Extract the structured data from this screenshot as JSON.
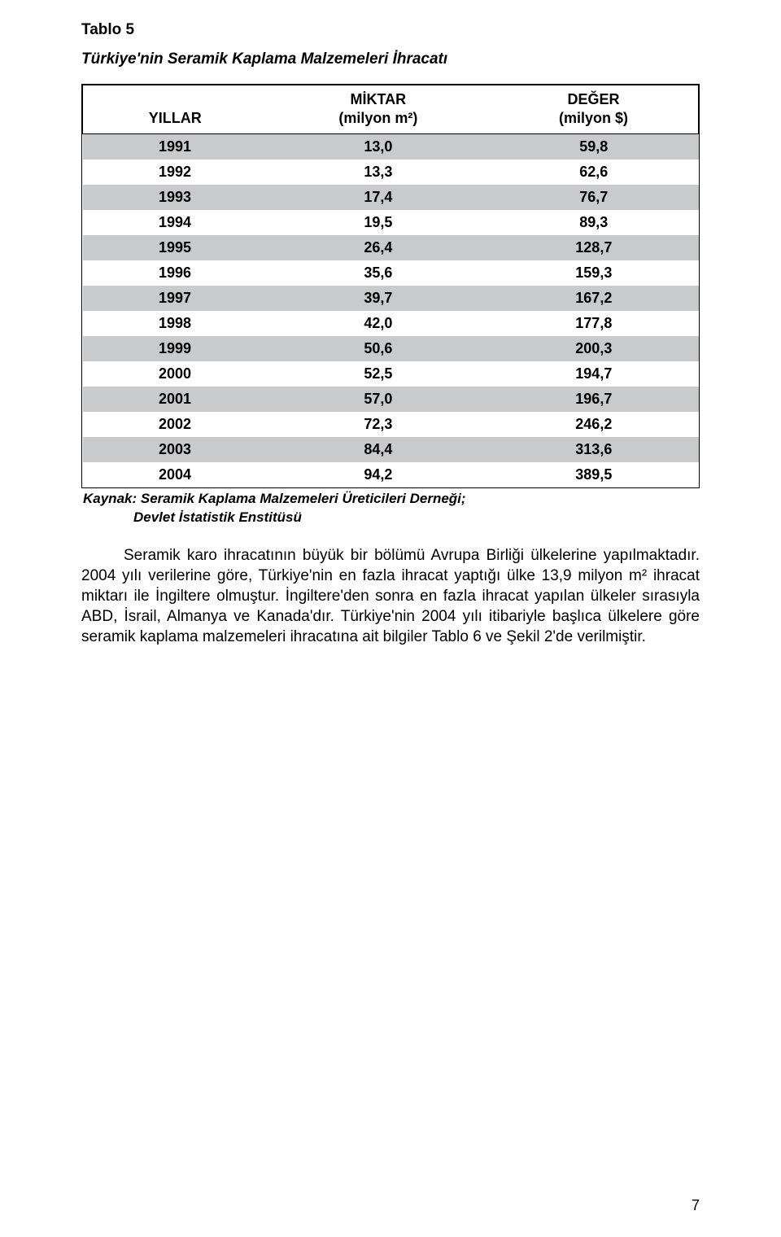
{
  "title": {
    "label": "Tablo 5",
    "subtitle": "Türkiye'nin Seramik Kaplama Malzemeleri İhracatı"
  },
  "table": {
    "type": "table",
    "background_color": "#ffffff",
    "row_even_color": "#c9cacb",
    "row_odd_color": "#ffffff",
    "border_color": "#000000",
    "columns": [
      {
        "key": "year",
        "label_line1": "",
        "label_line2": "YILLAR",
        "align": "center",
        "width_pct": 30
      },
      {
        "key": "qty",
        "label_line1": "MİKTAR",
        "label_line2": "(milyon m²)",
        "align": "center",
        "width_pct": 36
      },
      {
        "key": "val",
        "label_line1": "DEĞER",
        "label_line2": "(milyon $)",
        "align": "center",
        "width_pct": 34
      }
    ],
    "rows": [
      {
        "year": "1991",
        "qty": "13,0",
        "val": "59,8"
      },
      {
        "year": "1992",
        "qty": "13,3",
        "val": "62,6"
      },
      {
        "year": "1993",
        "qty": "17,4",
        "val": "76,7"
      },
      {
        "year": "1994",
        "qty": "19,5",
        "val": "89,3"
      },
      {
        "year": "1995",
        "qty": "26,4",
        "val": "128,7"
      },
      {
        "year": "1996",
        "qty": "35,6",
        "val": "159,3"
      },
      {
        "year": "1997",
        "qty": "39,7",
        "val": "167,2"
      },
      {
        "year": "1998",
        "qty": "42,0",
        "val": "177,8"
      },
      {
        "year": "1999",
        "qty": "50,6",
        "val": "200,3"
      },
      {
        "year": "2000",
        "qty": "52,5",
        "val": "194,7"
      },
      {
        "year": "2001",
        "qty": "57,0",
        "val": "196,7"
      },
      {
        "year": "2002",
        "qty": "72,3",
        "val": "246,2"
      },
      {
        "year": "2003",
        "qty": "84,4",
        "val": "313,6"
      },
      {
        "year": "2004",
        "qty": "94,2",
        "val": "389,5"
      }
    ]
  },
  "source": {
    "prefix": "Kaynak:",
    "line1": "Seramik Kaplama Malzemeleri Üreticileri Derneği;",
    "line2": "Devlet İstatistik Enstitüsü"
  },
  "paragraph": "Seramik karo ihracatının büyük bir bölümü Avrupa Birliği ülkelerine yapılmaktadır. 2004 yılı verilerine göre, Türkiye'nin en fazla ihracat yaptığı ülke 13,9 milyon m² ihracat miktarı ile İngiltere olmuştur. İngiltere'den sonra en fazla ihracat yapılan ülkeler sırasıyla ABD, İsrail, Almanya ve Kanada'dır. Türkiye'nin 2004 yılı itibariyle başlıca ülkelere göre seramik kaplama malzemeleri ihracatına ait bilgiler Tablo 6 ve Şekil 2'de verilmiştir.",
  "page_number": "7",
  "style": {
    "font_family": "Arial",
    "title_fontsize": 19,
    "body_fontsize": 19,
    "table_fontsize": 18,
    "source_fontsize": 17,
    "text_color": "#000000"
  }
}
